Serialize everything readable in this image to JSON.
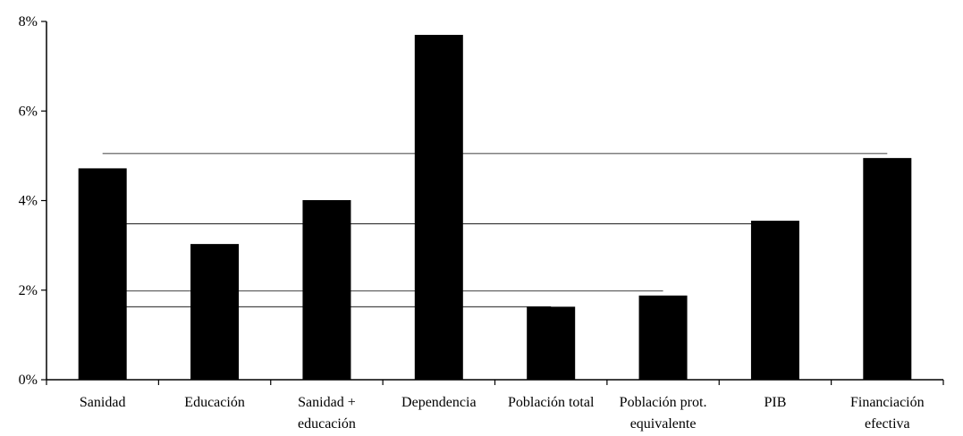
{
  "chart_data": {
    "type": "bar",
    "title": "",
    "xlabel": "",
    "ylabel": "",
    "ylim": [
      0,
      8
    ],
    "y_ticks": [
      {
        "value": 0,
        "label": "0%"
      },
      {
        "value": 2,
        "label": "2%"
      },
      {
        "value": 4,
        "label": "4%"
      },
      {
        "value": 6,
        "label": "6%"
      },
      {
        "value": 8,
        "label": "8%"
      }
    ],
    "categories": [
      [
        "Sanidad"
      ],
      [
        "Educación"
      ],
      [
        "Sanidad +",
        "educación"
      ],
      [
        "Dependencia"
      ],
      [
        "Población total"
      ],
      [
        "Población prot.",
        "equivalente"
      ],
      [
        "PIB"
      ],
      [
        "Financiación",
        "efectiva"
      ]
    ],
    "values": [
      4.72,
      3.03,
      4.01,
      7.7,
      1.63,
      1.88,
      3.55,
      4.95
    ],
    "bar_color": "#000000",
    "grid": false,
    "legend": "none",
    "reference_lines": [
      {
        "y": 5.05,
        "from_category": 0,
        "to_category": 7
      },
      {
        "y": 3.48,
        "from_category": 0,
        "to_category": 6
      },
      {
        "y": 1.98,
        "from_category": 0,
        "to_category": 5
      },
      {
        "y": 1.63,
        "from_category": 0,
        "to_category": 4
      }
    ]
  }
}
